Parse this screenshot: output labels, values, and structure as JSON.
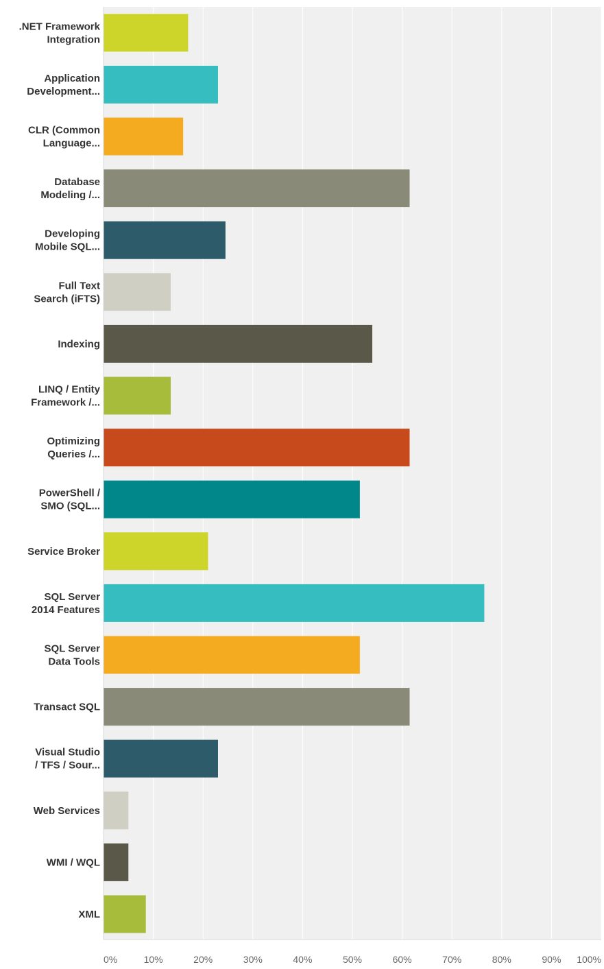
{
  "chart_data": {
    "type": "bar",
    "orientation": "horizontal",
    "categories": [
      [
        ".NET Framework",
        "Integration"
      ],
      [
        "Application",
        "Development..."
      ],
      [
        "CLR (Common",
        "Language..."
      ],
      [
        "Database",
        "Modeling /..."
      ],
      [
        "Developing",
        "Mobile SQL..."
      ],
      [
        "Full Text",
        "Search (iFTS)"
      ],
      [
        "Indexing"
      ],
      [
        "LINQ / Entity",
        "Framework /..."
      ],
      [
        "Optimizing",
        "Queries /..."
      ],
      [
        "PowerShell /",
        "SMO (SQL..."
      ],
      [
        "Service Broker"
      ],
      [
        "SQL Server",
        "2014 Features"
      ],
      [
        "SQL Server",
        "Data Tools"
      ],
      [
        "Transact SQL"
      ],
      [
        "Visual Studio",
        "/ TFS / Sour..."
      ],
      [
        "Web Services"
      ],
      [
        "WMI / WQL"
      ],
      [
        "XML"
      ]
    ],
    "values": [
      17,
      23,
      16,
      61.5,
      24.5,
      13.5,
      54,
      13.5,
      61.5,
      51.5,
      21,
      76.5,
      51.5,
      61.5,
      23,
      5,
      5,
      8.5
    ],
    "colors": [
      "#cdd52a",
      "#36bdbf",
      "#f5ab20",
      "#8a8a78",
      "#2d5b69",
      "#d0cfc3",
      "#5a5849",
      "#a8bc3c",
      "#c64a1c",
      "#01878a",
      "#cdd52a",
      "#36bdbf",
      "#f5ab20",
      "#8a8a78",
      "#2d5b69",
      "#d0cfc3",
      "#5a5849",
      "#a8bc3c"
    ],
    "xlim": [
      0,
      100
    ],
    "x_ticks": [
      0,
      10,
      20,
      30,
      40,
      50,
      60,
      70,
      80,
      90,
      100
    ],
    "x_tick_labels": [
      "0%",
      "10%",
      "20%",
      "30%",
      "40%",
      "50%",
      "60%",
      "70%",
      "80%",
      "90%",
      "100%"
    ],
    "grid": "vertical",
    "plot_background": "#f0f0f0",
    "title": "",
    "xlabel": "",
    "ylabel": ""
  }
}
